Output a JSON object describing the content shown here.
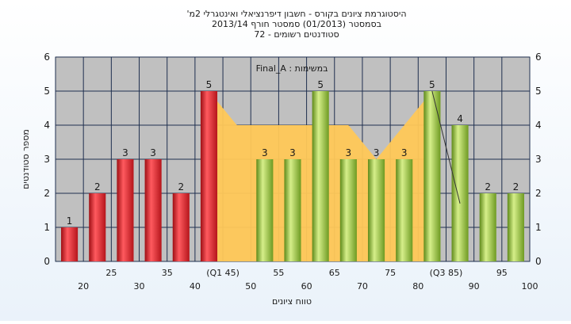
{
  "title_lines": [
    "'היסטוגרמת ציונים בקורס - חשבון דיפרנציאלי ואינטגרלי 2מ",
    "בסמסטר  (01/2013)  סמסטר חורף 2013/14",
    "סטודנטים רשומים - 72"
  ],
  "chart_data": {
    "type": "bar",
    "categories": [
      "20",
      "25",
      "30",
      "35",
      "40",
      "(Q1 45)",
      "50",
      "55",
      "60",
      "65",
      "70",
      "75",
      "80",
      "(Q3 85)",
      "90",
      "95",
      "100"
    ],
    "values": [
      1,
      2,
      3,
      3,
      2,
      5,
      null,
      3,
      3,
      5,
      3,
      3,
      3,
      5,
      4,
      2,
      2
    ],
    "bar_colors": [
      "red",
      "red",
      "red",
      "red",
      "red",
      "red",
      null,
      "green",
      "green",
      "green",
      "green",
      "green",
      "green",
      "green",
      "green",
      "green",
      "green"
    ],
    "area_series": {
      "name": "Final_A : במשימות",
      "values": [
        null,
        null,
        null,
        null,
        null,
        5,
        4,
        4,
        4,
        4,
        4,
        3,
        4,
        5,
        null,
        null,
        null
      ]
    },
    "xlabel": "טווח ציונים",
    "ylabel": "מספר סטודנטים",
    "ylim": [
      0,
      6
    ],
    "yticks": [
      0,
      1,
      2,
      3,
      4,
      5,
      6
    ],
    "grid": true,
    "legend_placement": "top-center"
  },
  "colors": {
    "plot_background": "#c0c0c0",
    "red_bar": "#e8242b",
    "green_bar": "#9bc53d",
    "area_fill": "#ffc857",
    "grid": "#1f2f4f"
  }
}
